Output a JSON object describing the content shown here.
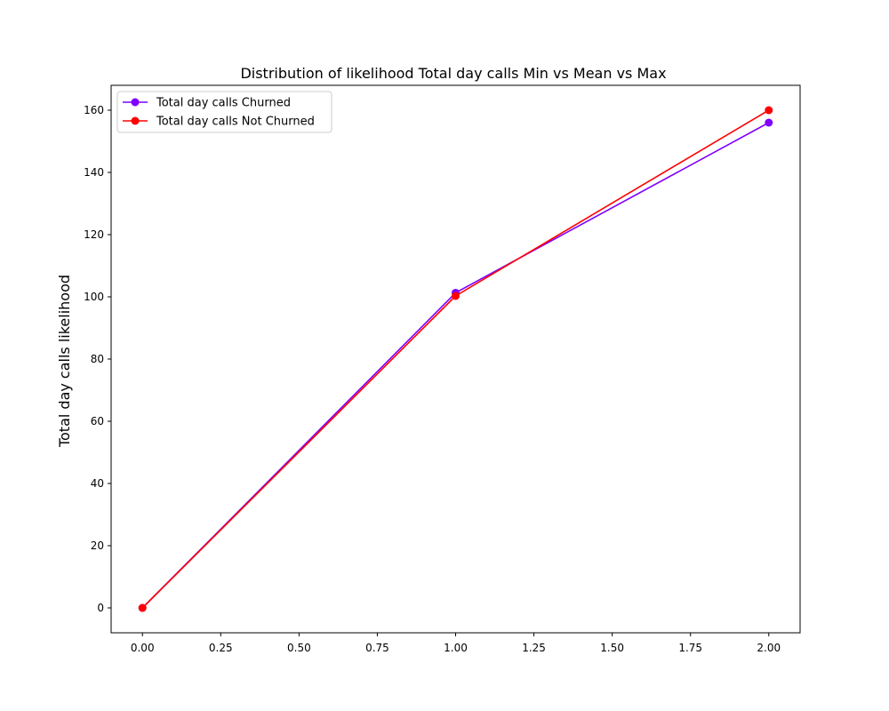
{
  "chart_data": {
    "type": "line",
    "title": "Distribution of likelihood Total day calls Min vs Mean vs Max",
    "xlabel": "",
    "ylabel": "Total day calls likelihood",
    "x": [
      0,
      1,
      2
    ],
    "series": [
      {
        "name": "Total day calls Churned",
        "values": [
          0,
          101.3,
          156
        ],
        "color": "#7f00ff"
      },
      {
        "name": "Total day calls Not Churned",
        "values": [
          0,
          100.3,
          160
        ],
        "color": "#ff0000"
      }
    ],
    "xlim": [
      -0.1,
      2.1
    ],
    "ylim": [
      -8,
      168
    ],
    "xticks": [
      0,
      0.25,
      0.5,
      0.75,
      1,
      1.25,
      1.5,
      1.75,
      2
    ],
    "xtick_labels": [
      "0.00",
      "0.25",
      "0.50",
      "0.75",
      "1.00",
      "1.25",
      "1.50",
      "1.75",
      "2.00"
    ],
    "yticks": [
      0,
      20,
      40,
      60,
      80,
      100,
      120,
      140,
      160
    ],
    "ytick_labels": [
      "0",
      "20",
      "40",
      "60",
      "80",
      "100",
      "120",
      "140",
      "160"
    ],
    "grid": false,
    "legend_position": "upper-left"
  }
}
